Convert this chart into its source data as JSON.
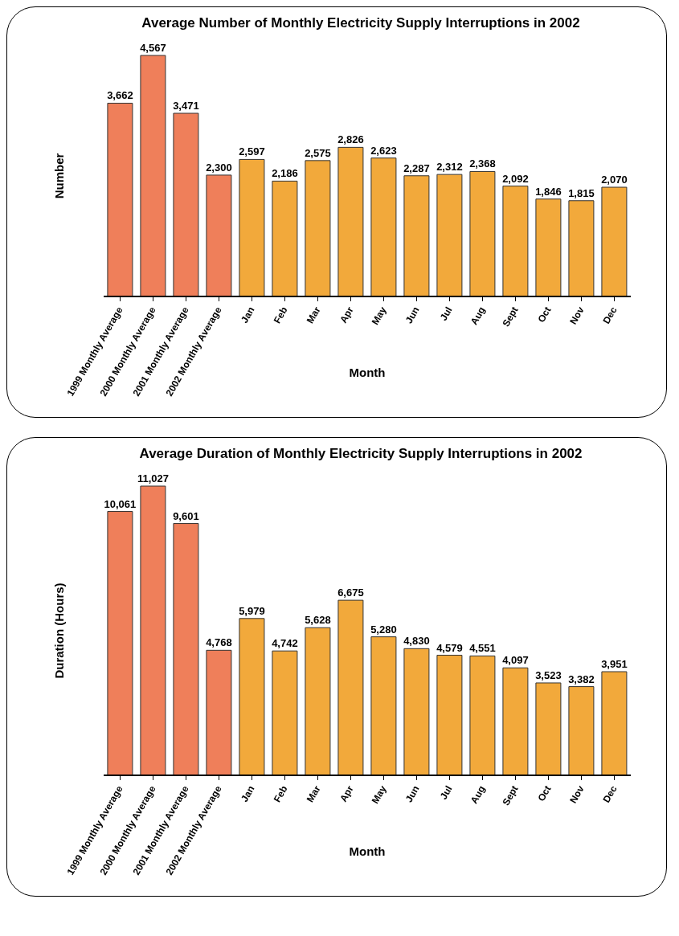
{
  "chart_data": [
    {
      "type": "bar",
      "title": "Average Number of Monthly Electricity Supply Interruptions in 2002",
      "xlabel": "Month",
      "ylabel": "Number",
      "categories": [
        "1999 Monthly Average",
        "2000 Monthly Average",
        "2001 Monthly Average",
        "2002 Monthly Average",
        "Jan",
        "Feb",
        "Mar",
        "Apr",
        "May",
        "Jun",
        "Jul",
        "Aug",
        "Sept",
        "Oct",
        "Nov",
        "Dec"
      ],
      "values": [
        3662,
        4567,
        3471,
        2300,
        2597,
        2186,
        2575,
        2826,
        2623,
        2287,
        2312,
        2368,
        2092,
        1846,
        1815,
        2070
      ],
      "value_labels": [
        "3,662",
        "4,567",
        "3,471",
        "2,300",
        "2,597",
        "2,186",
        "2,575",
        "2,826",
        "2,623",
        "2,287",
        "2,312",
        "2,368",
        "2,092",
        "1,846",
        "1,815",
        "2,070"
      ],
      "colors": [
        "#ef7f5a",
        "#ef7f5a",
        "#ef7f5a",
        "#ef7f5a",
        "#f2a93b",
        "#f2a93b",
        "#f2a93b",
        "#f2a93b",
        "#f2a93b",
        "#f2a93b",
        "#f2a93b",
        "#f2a93b",
        "#f2a93b",
        "#f2a93b",
        "#f2a93b",
        "#f2a93b"
      ],
      "legend": false
    },
    {
      "type": "bar",
      "title": "Average Duration of Monthly Electricity Supply Interruptions in 2002",
      "xlabel": "Month",
      "ylabel": "Duration (Hours)",
      "categories": [
        "1999 Monthly Average",
        "2000 Monthly Average",
        "2001 Monthly Average",
        "2002 Monthly Average",
        "Jan",
        "Feb",
        "Mar",
        "Apr",
        "May",
        "Jun",
        "Jul",
        "Aug",
        "Sept",
        "Oct",
        "Nov",
        "Dec"
      ],
      "values": [
        10061,
        11027,
        9601,
        4768,
        5979,
        4742,
        5628,
        6675,
        5280,
        4830,
        4579,
        4551,
        4097,
        3523,
        3382,
        3951
      ],
      "value_labels": [
        "10,061",
        "11,027",
        "9,601",
        "4,768",
        "5,979",
        "4,742",
        "5,628",
        "6,675",
        "5,280",
        "4,830",
        "4,579",
        "4,551",
        "4,097",
        "3,523",
        "3,382",
        "3,951"
      ],
      "colors": [
        "#ef7f5a",
        "#ef7f5a",
        "#ef7f5a",
        "#ef7f5a",
        "#f2a93b",
        "#f2a93b",
        "#f2a93b",
        "#f2a93b",
        "#f2a93b",
        "#f2a93b",
        "#f2a93b",
        "#f2a93b",
        "#f2a93b",
        "#f2a93b",
        "#f2a93b",
        "#f2a93b"
      ],
      "legend": false
    }
  ]
}
